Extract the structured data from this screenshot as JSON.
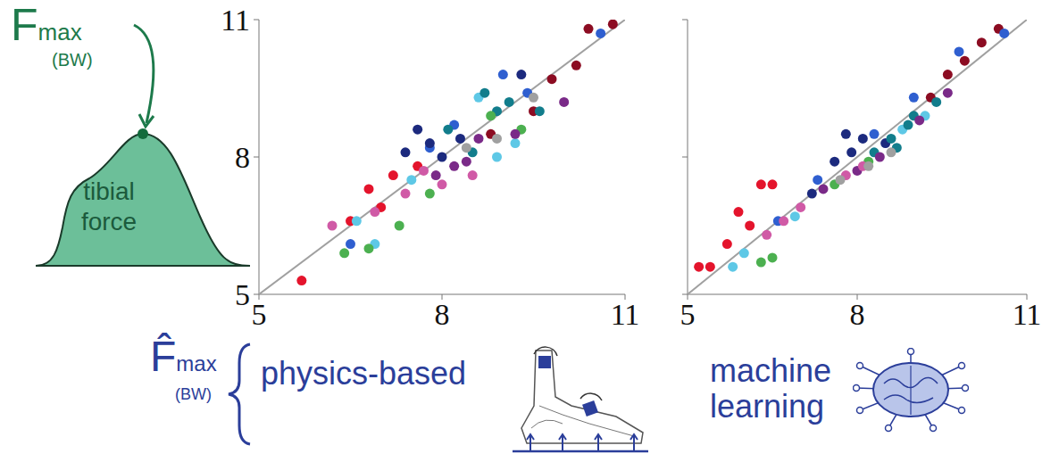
{
  "chart_data": [
    {
      "type": "scatter",
      "title": "physics-based",
      "xlim": [
        5,
        11
      ],
      "ylim": [
        5,
        11
      ],
      "xticks": [
        5,
        8,
        11
      ],
      "yticks": [
        5,
        8,
        11
      ],
      "series": [
        {
          "type": "line",
          "color": "#a0a0a0",
          "values": [
            [
              5,
              5
            ],
            [
              11,
              11
            ]
          ]
        },
        {
          "color": "#e4142c",
          "values": [
            [
              5.7,
              5.3
            ],
            [
              6.5,
              6.6
            ],
            [
              7.2,
              7.6
            ],
            [
              7.0,
              6.9
            ],
            [
              6.8,
              7.3
            ],
            [
              7.6,
              7.8
            ]
          ]
        },
        {
          "color": "#8c0c22",
          "values": [
            [
              9.8,
              9.7
            ],
            [
              10.2,
              10.0
            ],
            [
              10.4,
              10.8
            ],
            [
              10.8,
              10.9
            ],
            [
              9.5,
              9.0
            ],
            [
              8.8,
              8.5
            ]
          ]
        },
        {
          "color": "#2f5fd0",
          "values": [
            [
              10.6,
              10.7
            ],
            [
              9.4,
              9.4
            ],
            [
              8.2,
              8.7
            ],
            [
              7.8,
              8.2
            ],
            [
              9.0,
              9.8
            ],
            [
              6.5,
              6.1
            ]
          ]
        },
        {
          "color": "#1c2a7e",
          "values": [
            [
              7.6,
              8.6
            ],
            [
              7.8,
              8.3
            ],
            [
              8.0,
              8.0
            ],
            [
              7.4,
              8.1
            ],
            [
              8.3,
              8.4
            ],
            [
              9.3,
              9.8
            ]
          ]
        },
        {
          "color": "#5ec8e6",
          "values": [
            [
              6.6,
              6.6
            ],
            [
              7.5,
              7.5
            ],
            [
              8.9,
              8.0
            ],
            [
              9.2,
              8.3
            ],
            [
              8.6,
              9.3
            ],
            [
              6.9,
              6.1
            ]
          ]
        },
        {
          "color": "#127d8c",
          "values": [
            [
              8.5,
              8.1
            ],
            [
              8.7,
              9.4
            ],
            [
              9.1,
              9.2
            ],
            [
              8.1,
              8.6
            ],
            [
              9.6,
              9.0
            ],
            [
              8.9,
              9.0
            ]
          ]
        },
        {
          "color": "#4cb050",
          "values": [
            [
              6.4,
              5.9
            ],
            [
              6.8,
              6.0
            ],
            [
              7.3,
              6.5
            ],
            [
              8.8,
              8.9
            ],
            [
              7.8,
              7.2
            ],
            [
              9.3,
              8.6
            ]
          ]
        },
        {
          "color": "#7a2a88",
          "values": [
            [
              8.2,
              7.8
            ],
            [
              8.6,
              8.4
            ],
            [
              9.2,
              8.5
            ],
            [
              7.9,
              7.6
            ],
            [
              8.4,
              7.9
            ],
            [
              10.0,
              9.2
            ]
          ]
        },
        {
          "color": "#d05aa6",
          "values": [
            [
              6.2,
              6.5
            ],
            [
              6.9,
              6.8
            ],
            [
              7.4,
              7.2
            ],
            [
              8.5,
              7.6
            ],
            [
              7.7,
              7.7
            ],
            [
              8.0,
              7.4
            ]
          ]
        },
        {
          "color": "#a0a0a0",
          "values": [
            [
              8.9,
              8.4
            ],
            [
              9.5,
              9.3
            ],
            [
              8.4,
              8.2
            ]
          ]
        }
      ]
    },
    {
      "type": "scatter",
      "title": "machine learning",
      "xlim": [
        5,
        11
      ],
      "ylim": [
        5,
        11
      ],
      "xticks": [
        5,
        8,
        11
      ],
      "yticks": [
        5,
        8,
        11
      ],
      "tick_labels": "x",
      "series": [
        {
          "type": "line",
          "color": "#a0a0a0",
          "values": [
            [
              5,
              5
            ],
            [
              11,
              11
            ]
          ]
        },
        {
          "color": "#e4142c",
          "values": [
            [
              5.2,
              5.6
            ],
            [
              5.4,
              5.6
            ],
            [
              5.7,
              6.1
            ],
            [
              6.3,
              7.4
            ],
            [
              6.5,
              7.4
            ],
            [
              6.1,
              6.5
            ],
            [
              5.9,
              6.8
            ]
          ]
        },
        {
          "color": "#8c0c22",
          "values": [
            [
              10.5,
              10.8
            ],
            [
              10.2,
              10.5
            ],
            [
              9.9,
              10.1
            ],
            [
              9.6,
              9.8
            ],
            [
              9.3,
              9.3
            ]
          ]
        },
        {
          "color": "#2f5fd0",
          "values": [
            [
              10.6,
              10.7
            ],
            [
              9.8,
              10.3
            ],
            [
              9.0,
              9.3
            ],
            [
              8.3,
              8.5
            ],
            [
              7.3,
              7.5
            ],
            [
              6.6,
              6.6
            ]
          ]
        },
        {
          "color": "#1c2a7e",
          "values": [
            [
              7.6,
              7.9
            ],
            [
              7.9,
              8.1
            ],
            [
              8.1,
              8.4
            ],
            [
              7.8,
              8.5
            ],
            [
              8.5,
              8.3
            ],
            [
              7.2,
              7.2
            ]
          ]
        },
        {
          "color": "#5ec8e6",
          "values": [
            [
              5.8,
              5.6
            ],
            [
              6.0,
              5.9
            ],
            [
              6.9,
              6.7
            ],
            [
              8.8,
              8.6
            ],
            [
              9.2,
              8.9
            ]
          ]
        },
        {
          "color": "#127d8c",
          "values": [
            [
              8.6,
              8.4
            ],
            [
              8.9,
              8.7
            ],
            [
              8.3,
              8.1
            ],
            [
              9.0,
              8.9
            ],
            [
              8.7,
              8.2
            ],
            [
              9.4,
              9.2
            ]
          ]
        },
        {
          "color": "#4cb050",
          "values": [
            [
              6.3,
              5.7
            ],
            [
              6.5,
              5.8
            ],
            [
              7.6,
              7.4
            ],
            [
              8.2,
              7.9
            ]
          ]
        },
        {
          "color": "#7a2a88",
          "values": [
            [
              8.0,
              7.7
            ],
            [
              7.4,
              7.3
            ],
            [
              8.4,
              8.0
            ],
            [
              9.1,
              8.8
            ],
            [
              9.6,
              9.4
            ]
          ]
        },
        {
          "color": "#d05aa6",
          "values": [
            [
              6.4,
              6.3
            ],
            [
              6.7,
              6.6
            ],
            [
              7.0,
              6.9
            ],
            [
              7.8,
              7.6
            ],
            [
              8.1,
              7.8
            ]
          ]
        },
        {
          "color": "#a0a0a0",
          "values": [
            [
              8.2,
              7.8
            ],
            [
              7.7,
              7.5
            ],
            [
              8.6,
              8.1
            ]
          ]
        }
      ]
    }
  ],
  "y_label": {
    "symbol": "F",
    "subscript": "max",
    "unit": "(BW)"
  },
  "x_label": {
    "symbol": "F̂",
    "subscript": "max",
    "unit": "(BW)"
  },
  "inset_label": "tibial force"
}
